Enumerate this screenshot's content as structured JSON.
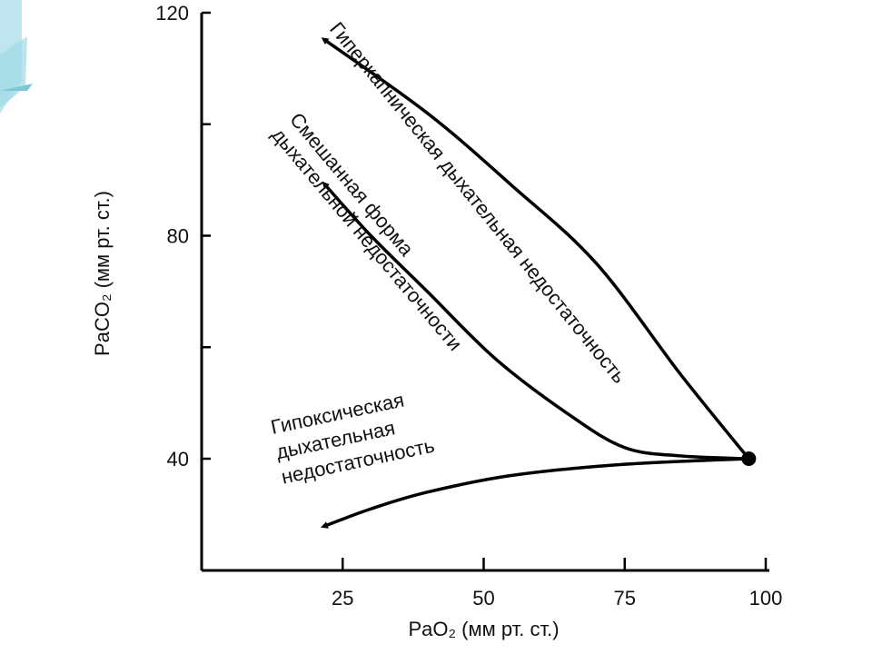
{
  "chart_data": {
    "type": "line",
    "xlabel": "PaO₂ (мм рт. ст.)",
    "ylabel": "PaCO₂ (мм рт. ст.)",
    "xlim": [
      0,
      100
    ],
    "ylim": [
      20,
      120
    ],
    "x_ticks": [
      25,
      50,
      75,
      100
    ],
    "y_ticks": [
      40,
      80,
      120
    ],
    "y_minor_ticks": [
      100,
      60
    ],
    "grid": false,
    "origin_point": {
      "x": 97,
      "y": 40
    },
    "series": [
      {
        "name": "Гиперкапническая дыхательная недостаточность",
        "points": [
          [
            97,
            40
          ],
          [
            85,
            55
          ],
          [
            70,
            75
          ],
          [
            55,
            89
          ],
          [
            40,
            102
          ],
          [
            22,
            115
          ]
        ]
      },
      {
        "name": "Смешанная форма дыхательной недостаточности",
        "points": [
          [
            97,
            40
          ],
          [
            85,
            40.5
          ],
          [
            75,
            42
          ],
          [
            65,
            48
          ],
          [
            52,
            58
          ],
          [
            40,
            70
          ],
          [
            30,
            80
          ],
          [
            22,
            89
          ]
        ]
      },
      {
        "name": "Гипоксическая дыхательная недостаточность",
        "points": [
          [
            97,
            40
          ],
          [
            75,
            39
          ],
          [
            55,
            37
          ],
          [
            40,
            34
          ],
          [
            30,
            31
          ],
          [
            22,
            28
          ]
        ]
      }
    ],
    "annotations": [
      {
        "lines": [
          "Гиперкапническая дыхательная недостаточность"
        ]
      },
      {
        "lines": [
          "Смешанная форма",
          "дыхательной недостаточности"
        ]
      },
      {
        "lines": [
          "Гипоксическая",
          "дыхательная",
          "недостаточность"
        ]
      }
    ]
  }
}
